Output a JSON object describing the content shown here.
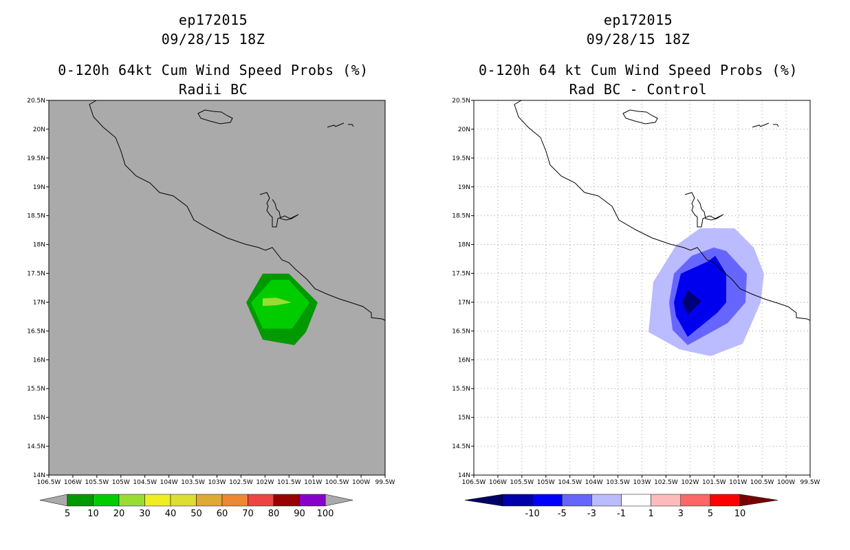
{
  "panels": [
    {
      "title": {
        "storm": "ep172015",
        "time": "09/28/15 18Z",
        "product": "0-120h 64kt Cum Wind Speed Probs (%)",
        "subtitle": "Radii BC"
      },
      "background_color": "#aaaaaa",
      "grid": false,
      "colorbar": {
        "labels": [
          "5",
          "10",
          "20",
          "30",
          "40",
          "50",
          "60",
          "70",
          "80",
          "90",
          "100"
        ],
        "colors": [
          "#009900",
          "#00cc00",
          "#99dd33",
          "#eeee22",
          "#dddd33",
          "#ddaa33",
          "#ee8833",
          "#ee4444",
          "#990000",
          "#8800cc"
        ],
        "end_color": "#aaaaaa"
      },
      "contours": [
        {
          "level": "5-10",
          "color": "#009900"
        },
        {
          "level": "10-20",
          "color": "#00cc00"
        },
        {
          "level": "20-30",
          "color": "#99dd33"
        }
      ]
    },
    {
      "title": {
        "storm": "ep172015",
        "time": "09/28/15 18Z",
        "product": "0-120h 64 kt Cum Wind Speed Probs (%)",
        "subtitle": "Rad BC - Control"
      },
      "background_color": "#ffffff",
      "grid": true,
      "colorbar": {
        "labels": [
          "-10",
          "-5",
          "-3",
          "-1",
          "1",
          "3",
          "5",
          "10"
        ],
        "colors": [
          "#0000aa",
          "#0000ff",
          "#6666ff",
          "#bbbbff",
          "#ffffff",
          "#ffbbbb",
          "#ff6666",
          "#ff0000"
        ],
        "end_left_color": "#000066",
        "end_right_color": "#770000"
      },
      "contours": [
        {
          "level": "-1 to -3",
          "color": "#bbbbff"
        },
        {
          "level": "-3 to -5",
          "color": "#6666ff"
        },
        {
          "level": "-5 to -10",
          "color": "#0000ee"
        },
        {
          "level": "< -10",
          "color": "#000077"
        }
      ]
    }
  ],
  "axes": {
    "y_labels": [
      "20.5N",
      "20N",
      "19.5N",
      "19N",
      "18.5N",
      "18N",
      "17.5N",
      "17N",
      "16.5N",
      "16N",
      "15.5N",
      "15N",
      "14.5N",
      "14N"
    ],
    "x_labels": [
      "106.5W",
      "106W",
      "105.5W",
      "105W",
      "104.5W",
      "104W",
      "103.5W",
      "103W",
      "102.5W",
      "102W",
      "101.5W",
      "101W",
      "100.5W",
      "100W",
      "99.5W"
    ]
  }
}
